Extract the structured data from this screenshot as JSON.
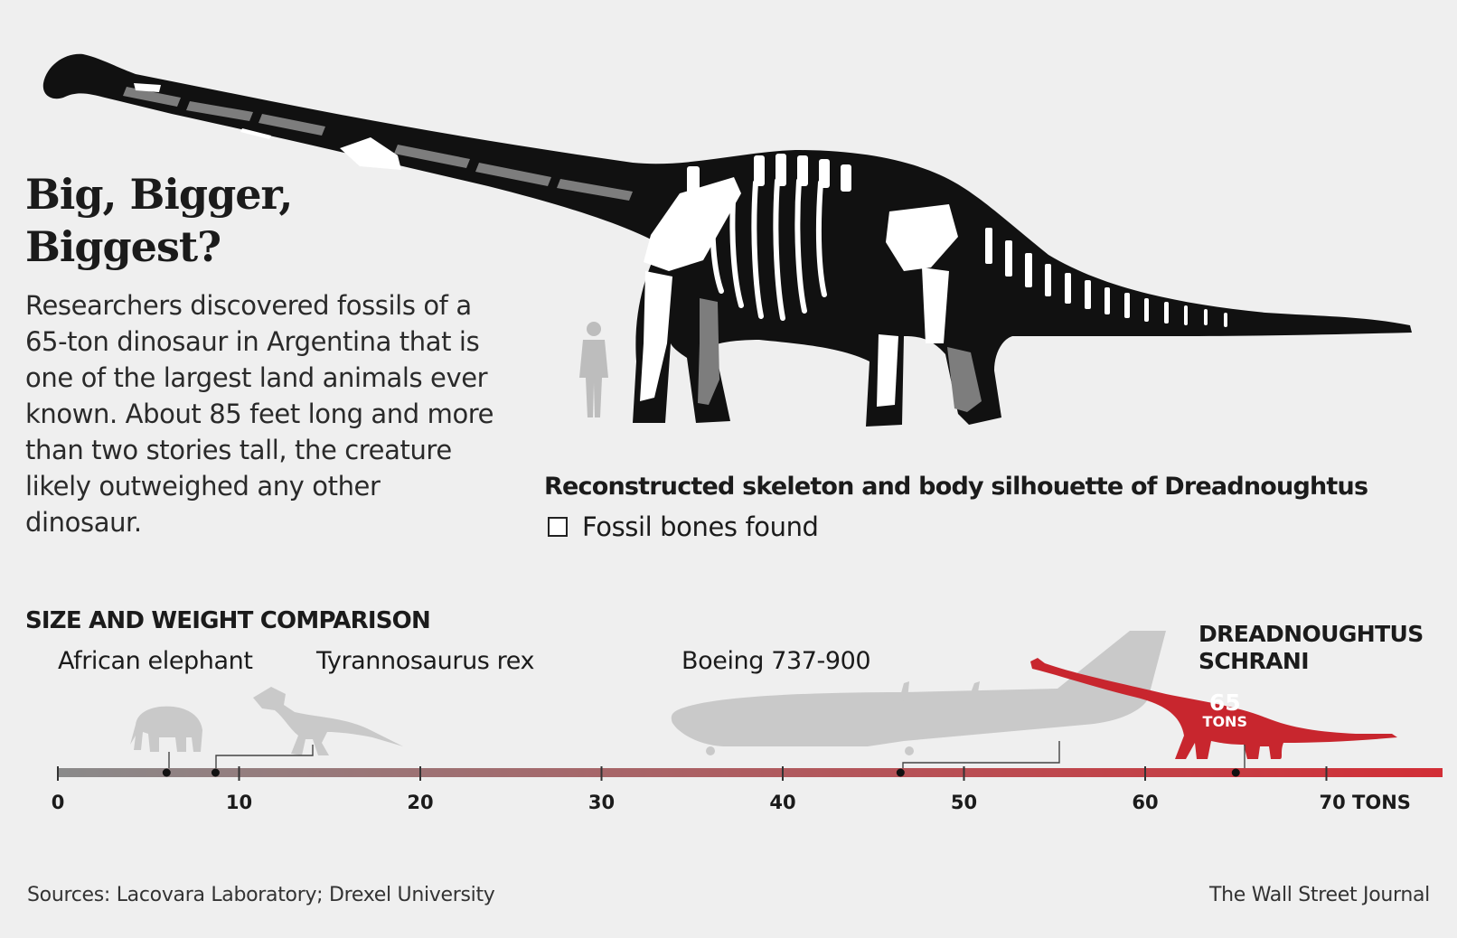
{
  "headline": {
    "title": "Big, Bigger,\nBiggest?",
    "body": "Researchers discovered fossils of a 65-ton dinosaur in Argentina that is one of the largest land animals ever known. About 85 feet long and more than two stories tall, the creature likely outweighed any other dinosaur."
  },
  "skeleton": {
    "caption": "Reconstructed skeleton and body silhouette of Dreadnoughtus",
    "legend_label": "Fossil bones found"
  },
  "comparison_title": "SIZE AND WEIGHT COMPARISON",
  "colors": {
    "background": "#efefef",
    "silhouette": "#c9c9c9",
    "dreadnoughtus": "#c8262e",
    "skeleton_body": "#111111",
    "bone_found": "#ffffff",
    "bone_missing": "#7d7d7d",
    "scale_start": "#8a8a8a",
    "scale_end": "#d22e36"
  },
  "chart_data": {
    "type": "scatter",
    "title": "SIZE AND WEIGHT COMPARISON",
    "xlabel": "",
    "unit": "TONS",
    "xlim": [
      0,
      76
    ],
    "ticks": [
      0,
      10,
      20,
      30,
      40,
      50,
      60,
      70
    ],
    "tick_labels": [
      "0",
      "10",
      "20",
      "30",
      "40",
      "50",
      "60",
      "70 TONS"
    ],
    "points": [
      {
        "name": "African elephant",
        "value": 6
      },
      {
        "name": "Tyrannosaurus rex",
        "value": 8.7
      },
      {
        "name": "Boeing 737-900",
        "value": 46.5
      },
      {
        "name": "DREADNOUGHTUS SCHRANI",
        "value": 65,
        "value_label": "65",
        "unit_label": "TONS"
      }
    ]
  },
  "footer": {
    "source": "Sources: Lacovara Laboratory; Drexel University",
    "credit": "The Wall Street Journal"
  }
}
